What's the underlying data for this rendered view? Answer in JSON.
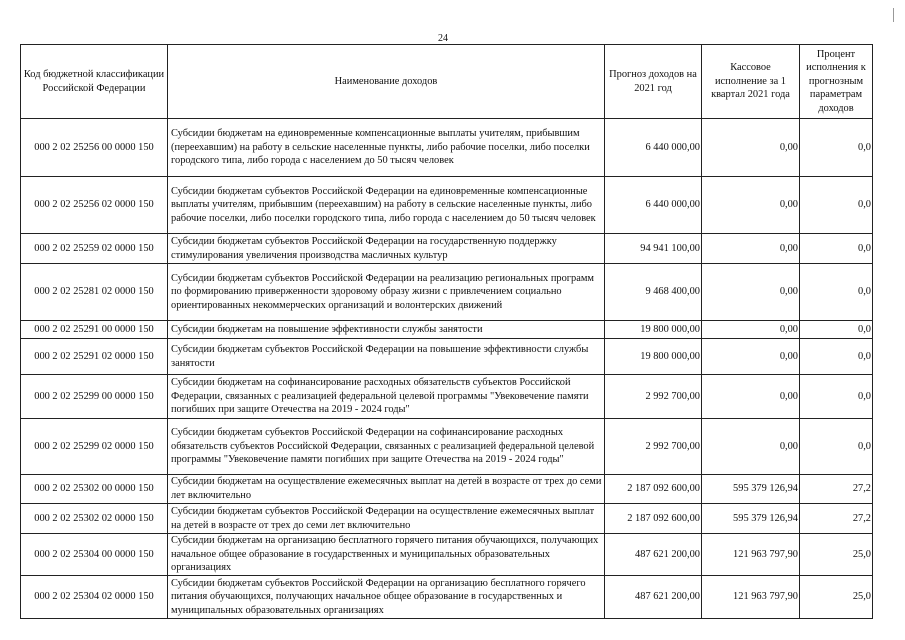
{
  "page_number": "24",
  "headers": {
    "code": "Код бюджетной классификации Российской Федерации",
    "name": "Наименование доходов",
    "forecast": "Прогноз доходов на 2021 год",
    "cash": "Кассовое исполнение за 1 квартал 2021 года",
    "percent": "Процент исполнения к прогнозным параметрам доходов"
  },
  "rows": [
    {
      "code": "000 2 02 25256 00 0000 150",
      "name": "Субсидии бюджетам на единовременные компенсационные выплаты учителям, прибывшим (переехавшим) на работу в сельские населенные пункты, либо рабочие поселки, либо поселки городского типа, либо города с населением до 50 тысяч человек",
      "forecast": "6 440 000,00",
      "cash": "0,00",
      "percent": "0,0"
    },
    {
      "code": "000 2 02 25256 02 0000 150",
      "name": "Субсидии бюджетам субъектов Российской Федерации на единовременные компенсационные выплаты учителям, прибывшим (переехавшим) на работу в сельские населенные пункты, либо рабочие поселки, либо поселки городского типа, либо города с населением до 50 тысяч человек",
      "forecast": "6 440 000,00",
      "cash": "0,00",
      "percent": "0,0"
    },
    {
      "code": "000 2 02 25259 02 0000 150",
      "name": "Субсидии бюджетам субъектов Российской Федерации на государственную поддержку стимулирования увеличения производства масличных культур",
      "forecast": "94 941 100,00",
      "cash": "0,00",
      "percent": "0,0"
    },
    {
      "code": "000 2 02 25281 02 0000 150",
      "name": "Субсидии бюджетам субъектов Российской Федерации на реализацию региональных программ по формированию приверженности здоровому образу жизни с привлечением социально ориентированных некоммерческих организаций и волонтерских движений",
      "forecast": "9 468 400,00",
      "cash": "0,00",
      "percent": "0,0"
    },
    {
      "code": "000 2 02 25291 00 0000 150",
      "name": "Субсидии бюджетам на повышение эффективности службы занятости",
      "forecast": "19 800 000,00",
      "cash": "0,00",
      "percent": "0,0"
    },
    {
      "code": "000 2 02 25291 02 0000 150",
      "name": "Субсидии бюджетам субъектов Российской Федерации на повышение эффективности службы занятости",
      "forecast": "19 800 000,00",
      "cash": "0,00",
      "percent": "0,0"
    },
    {
      "code": "000 2 02 25299 00 0000 150",
      "name": "Субсидии бюджетам на софинансирование расходных обязательств субъектов Российской Федерации, связанных с реализацией федеральной целевой программы \"Увековечение памяти погибших при защите Отечества на 2019 - 2024 годы\"",
      "forecast": "2 992 700,00",
      "cash": "0,00",
      "percent": "0,0"
    },
    {
      "code": "000 2 02 25299 02 0000 150",
      "name": "Субсидии бюджетам субъектов Российской Федерации на софинансирование расходных обязательств субъектов Российской Федерации, связанных с реализацией федеральной целевой программы \"Увековечение памяти погибших при защите Отечества на 2019 - 2024 годы\"",
      "forecast": "2 992 700,00",
      "cash": "0,00",
      "percent": "0,0"
    },
    {
      "code": "000 2 02 25302 00 0000 150",
      "name": "Субсидии бюджетам на осуществление ежемесячных выплат на детей в возрасте от трех до семи лет включительно",
      "forecast": "2 187 092 600,00",
      "cash": "595 379 126,94",
      "percent": "27,2"
    },
    {
      "code": "000 2 02 25302 02 0000 150",
      "name": "Субсидии бюджетам субъектов Российской Федерации на осуществление ежемесячных выплат на детей в возрасте от трех до семи лет включительно",
      "forecast": "2 187 092 600,00",
      "cash": "595 379 126,94",
      "percent": "27,2"
    },
    {
      "code": "000 2 02 25304 00 0000 150",
      "name": "Субсидии бюджетам на организацию бесплатного горячего питания обучающихся, получающих начальное общее образование в государственных и муниципальных образовательных организациях",
      "forecast": "487 621 200,00",
      "cash": "121 963 797,90",
      "percent": "25,0"
    },
    {
      "code": "000 2 02 25304 02 0000 150",
      "name": "Субсидии бюджетам субъектов Российской Федерации на организацию бесплатного горячего питания обучающихся, получающих начальное общее образование в государственных и муниципальных образовательных организациях",
      "forecast": "487 621 200,00",
      "cash": "121 963 797,90",
      "percent": "25,0"
    }
  ]
}
